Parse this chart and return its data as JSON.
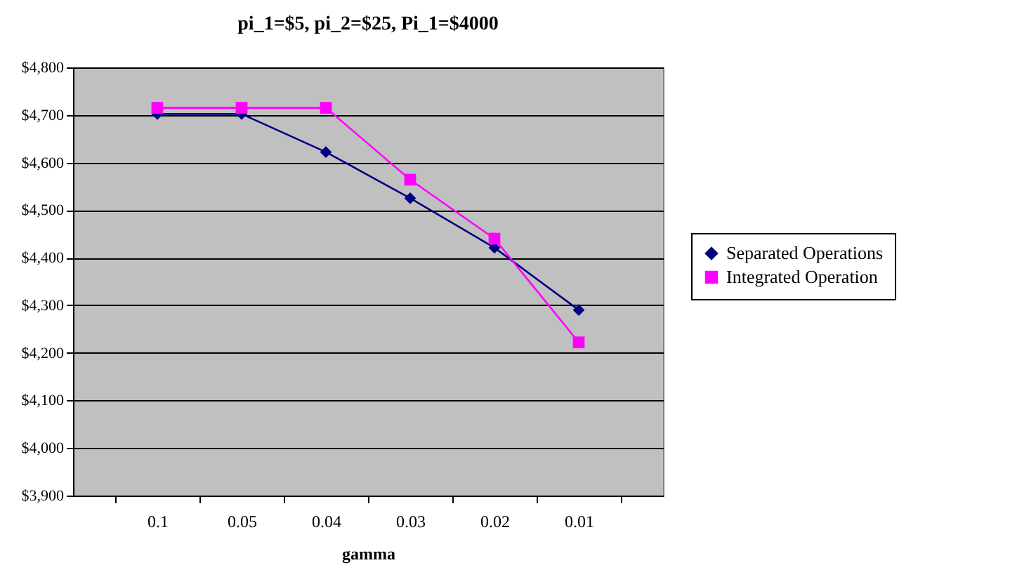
{
  "chart_data": {
    "type": "line",
    "title": "pi_1=$5, pi_2=$25, Pi_1=$4000",
    "xlabel": "gamma",
    "categories": [
      "0.1",
      "0.05",
      "0.04",
      "0.03",
      "0.02",
      "0.01"
    ],
    "series": [
      {
        "name": "Separated Operations",
        "color": "#000080",
        "marker": "diamond",
        "values": [
          4702,
          4702,
          4622,
          4525,
          4421,
          4290
        ]
      },
      {
        "name": "Integrated Operation",
        "color": "#ff00ff",
        "marker": "square",
        "values": [
          4715,
          4715,
          4715,
          4564,
          4440,
          4222
        ]
      }
    ],
    "ylim": [
      3900,
      4800
    ],
    "yticks": [
      {
        "value": 3900,
        "label": "$3,900"
      },
      {
        "value": 4000,
        "label": "$4,000"
      },
      {
        "value": 4100,
        "label": "$4,100"
      },
      {
        "value": 4200,
        "label": "$4,200"
      },
      {
        "value": 4300,
        "label": "$4,300"
      },
      {
        "value": 4400,
        "label": "$4,400"
      },
      {
        "value": 4500,
        "label": "$4,500"
      },
      {
        "value": 4600,
        "label": "$4,600"
      },
      {
        "value": 4700,
        "label": "$4,700"
      },
      {
        "value": 4800,
        "label": "$4,800"
      }
    ],
    "grid": "y",
    "legend": "right"
  }
}
